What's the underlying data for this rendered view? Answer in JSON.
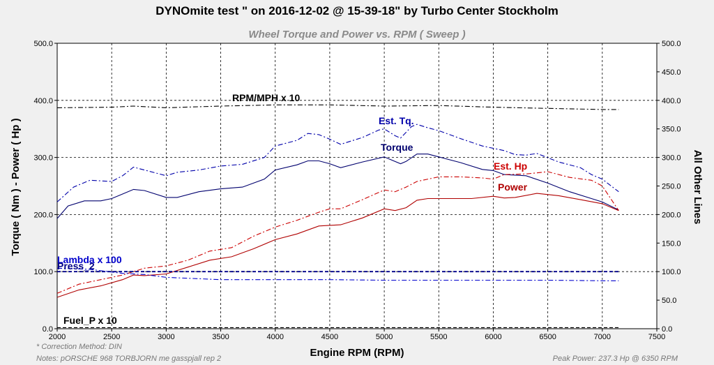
{
  "chart_data": {
    "type": "line",
    "title": "DYNOmite test \" on 2016-12-02 @ 15-39-18\" by Turbo Center Stockholm",
    "subtitle": "Wheel Torque and Power vs. RPM ( Sweep )",
    "xlabel": "Engine RPM (RPM)",
    "ylabel_left": "Torque ( Nm ) - Power ( Hp )",
    "ylabel_right": "All Other Lines",
    "xlim": [
      2000,
      7500
    ],
    "ylim_left": [
      0,
      500
    ],
    "ylim_right": [
      0,
      500
    ],
    "x_ticks": [
      2000,
      2500,
      3000,
      3500,
      4000,
      4500,
      5000,
      5500,
      6000,
      6500,
      7000,
      7500
    ],
    "y_left_ticks": [
      "0.0",
      "100.0",
      "200.0",
      "300.0",
      "400.0",
      "500.0"
    ],
    "y_right_ticks": [
      "0.0",
      "50.0",
      "100.0",
      "150.0",
      "200.0",
      "250.0",
      "300.0",
      "350.0",
      "400.0",
      "450.0",
      "500.0"
    ],
    "grid": "dashed",
    "series": [
      {
        "name": "RPM/MPH x 10",
        "color": "#000000",
        "style": "dashdot",
        "x": [
          2000,
          2500,
          2700,
          3000,
          3500,
          4000,
          4500,
          5000,
          5500,
          6000,
          6500,
          7000,
          7150
        ],
        "y": [
          387,
          388,
          390,
          387,
          390,
          392,
          392,
          390,
          391,
          388,
          386,
          384,
          384
        ]
      },
      {
        "name": "Est. Tq.",
        "color": "#0000aa",
        "style": "dashdot",
        "x": [
          2000,
          2150,
          2300,
          2500,
          2600,
          2700,
          2800,
          3000,
          3100,
          3300,
          3500,
          3700,
          3900,
          4000,
          4200,
          4300,
          4400,
          4500,
          4600,
          4800,
          4950,
          5000,
          5100,
          5150,
          5250,
          5300,
          5400,
          5500,
          5700,
          5900,
          6100,
          6200,
          6300,
          6400,
          6600,
          6800,
          6900,
          7000,
          7150
        ],
        "y": [
          222,
          248,
          260,
          258,
          268,
          283,
          278,
          268,
          274,
          278,
          285,
          288,
          300,
          320,
          330,
          342,
          340,
          332,
          323,
          335,
          348,
          350,
          338,
          334,
          354,
          358,
          352,
          347,
          333,
          320,
          312,
          305,
          304,
          307,
          292,
          282,
          270,
          262,
          240
        ]
      },
      {
        "name": "Torque",
        "color": "#00006e",
        "style": "solid",
        "x": [
          2000,
          2100,
          2250,
          2400,
          2500,
          2600,
          2700,
          2800,
          3000,
          3100,
          3300,
          3500,
          3700,
          3900,
          4000,
          4200,
          4300,
          4400,
          4500,
          4600,
          4800,
          5000,
          5050,
          5150,
          5200,
          5300,
          5400,
          5500,
          5700,
          5900,
          6000,
          6100,
          6300,
          6500,
          6700,
          6900,
          7000,
          7150
        ],
        "y": [
          193,
          215,
          224,
          224,
          228,
          236,
          244,
          242,
          230,
          230,
          240,
          245,
          248,
          262,
          278,
          287,
          294,
          294,
          289,
          282,
          292,
          301,
          297,
          289,
          293,
          306,
          306,
          301,
          291,
          279,
          277,
          270,
          268,
          255,
          240,
          228,
          222,
          208
        ]
      },
      {
        "name": "Est. Hp",
        "color": "#cc0000",
        "style": "dashdot",
        "x": [
          2000,
          2200,
          2400,
          2600,
          2800,
          3000,
          3200,
          3400,
          3600,
          3800,
          4000,
          4200,
          4400,
          4500,
          4600,
          4800,
          5000,
          5100,
          5200,
          5300,
          5500,
          5700,
          5900,
          6000,
          6100,
          6300,
          6500,
          6700,
          6900,
          7000,
          7150
        ],
        "y": [
          62,
          78,
          86,
          94,
          106,
          110,
          120,
          136,
          142,
          162,
          178,
          190,
          204,
          210,
          210,
          226,
          243,
          240,
          248,
          258,
          266,
          266,
          264,
          262,
          270,
          271,
          275,
          265,
          260,
          250,
          207
        ]
      },
      {
        "name": "Power",
        "color": "#b00000",
        "style": "solid",
        "x": [
          2000,
          2200,
          2400,
          2600,
          2700,
          2800,
          3000,
          3200,
          3400,
          3600,
          3800,
          4000,
          4200,
          4400,
          4600,
          4800,
          5000,
          5100,
          5200,
          5300,
          5400,
          5600,
          5800,
          6000,
          6100,
          6200,
          6400,
          6600,
          6800,
          7000,
          7150
        ],
        "y": [
          55,
          68,
          75,
          86,
          94,
          93,
          96,
          108,
          120,
          126,
          140,
          156,
          166,
          180,
          182,
          194,
          210,
          207,
          212,
          225,
          228,
          228,
          228,
          232,
          229,
          230,
          237,
          233,
          226,
          219,
          207
        ]
      },
      {
        "name": "Lambda x 100",
        "color": "#0000cc",
        "style": "dashdot",
        "x": [
          2000,
          2300,
          2600,
          2800,
          3000,
          3500,
          4000,
          4500,
          5000,
          5500,
          6000,
          6500,
          7000,
          7150
        ],
        "y": [
          106,
          104,
          97,
          95,
          90,
          86,
          86,
          86,
          85,
          85,
          85,
          85,
          84,
          84
        ]
      },
      {
        "name": "Press_2",
        "color": "#000088",
        "style": "dashed",
        "x": [
          2000,
          7150
        ],
        "y": [
          100,
          100
        ]
      },
      {
        "name": "Fuel_P x 10",
        "color": "#000000",
        "style": "dashed",
        "x": [
          2000,
          7150
        ],
        "y": [
          2,
          2
        ]
      }
    ]
  },
  "footer": {
    "correction": "* Correction Method: DIN",
    "notes": "Notes:  pORSCHE 968 TORBJORN me gasspjall rep 2",
    "peak": "Peak Power: 237.3 Hp @ 6350 RPM"
  }
}
